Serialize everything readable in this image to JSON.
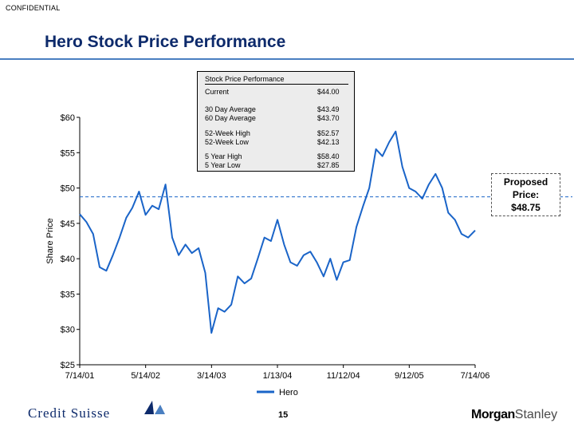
{
  "header": {
    "confidential": "CONFIDENTIAL",
    "title": "Hero Stock Price Performance"
  },
  "stats_box": {
    "title": "Stock Price Performance",
    "rows": [
      {
        "label": "Current",
        "value": "$44.00"
      },
      {
        "label": "30 Day Average",
        "value": "$43.49"
      },
      {
        "label": "60 Day Average",
        "value": "$43.70"
      },
      {
        "label": "52-Week High",
        "value": "$52.57"
      },
      {
        "label": "52-Week Low",
        "value": "$42.13"
      },
      {
        "label": "5 Year High",
        "value": "$58.40"
      },
      {
        "label": "5 Year Low",
        "value": "$27.85"
      }
    ]
  },
  "proposed": {
    "line1": "Proposed",
    "line2": "Price:",
    "line3": "$48.75"
  },
  "footer": {
    "left_logo": "Credit Suisse",
    "page_number": "15",
    "right_logo_part1": "Morgan",
    "right_logo_part2": "Stanley"
  },
  "colors": {
    "series": "#1a64c8",
    "title": "#0d2a6b",
    "rule": "#4a7fc1"
  },
  "chart_data": {
    "type": "line",
    "title": "",
    "xlabel": "",
    "ylabel": "Share Price",
    "ylim": [
      25,
      60
    ],
    "y_ticks": [
      25,
      30,
      35,
      40,
      45,
      50,
      55,
      60
    ],
    "y_tick_labels": [
      "$25",
      "$30",
      "$35",
      "$40",
      "$45",
      "$50",
      "$55",
      "$60"
    ],
    "x_tick_labels": [
      "7/14/01",
      "5/14/02",
      "3/14/03",
      "1/13/04",
      "11/12/04",
      "9/12/05",
      "7/14/06"
    ],
    "xlim": [
      "7/14/01",
      "7/14/06"
    ],
    "reference_line": {
      "value": 48.75,
      "style": "dashed"
    },
    "legend": "bottom-center",
    "grid": false,
    "series": [
      {
        "name": "Hero",
        "x": [
          "7/14/01",
          "8/14/01",
          "9/14/01",
          "10/14/01",
          "11/14/01",
          "12/14/01",
          "1/14/02",
          "2/14/02",
          "3/14/02",
          "4/14/02",
          "5/14/02",
          "6/14/02",
          "7/14/02",
          "8/14/02",
          "9/14/02",
          "10/14/02",
          "11/14/02",
          "12/14/02",
          "1/14/03",
          "2/14/03",
          "3/14/03",
          "4/14/03",
          "5/14/03",
          "6/14/03",
          "7/14/03",
          "8/14/03",
          "9/14/03",
          "10/14/03",
          "11/14/03",
          "12/14/03",
          "1/13/04",
          "2/13/04",
          "3/13/04",
          "4/13/04",
          "5/13/04",
          "6/13/04",
          "7/13/04",
          "8/13/04",
          "9/13/04",
          "10/13/04",
          "11/12/04",
          "12/12/04",
          "1/12/05",
          "2/12/05",
          "3/12/05",
          "4/12/05",
          "5/12/05",
          "6/12/05",
          "7/12/05",
          "8/12/05",
          "9/12/05",
          "10/12/05",
          "11/12/05",
          "12/12/05",
          "1/12/06",
          "2/12/06",
          "3/12/06",
          "4/12/06",
          "5/12/06",
          "6/12/06",
          "7/14/06"
        ],
        "values": [
          46.3,
          45.2,
          43.5,
          38.8,
          38.3,
          40.5,
          43.0,
          45.8,
          47.2,
          49.5,
          46.2,
          47.5,
          47.0,
          50.5,
          43.0,
          40.5,
          42.0,
          40.8,
          41.5,
          38.0,
          29.5,
          33.0,
          32.5,
          33.5,
          37.5,
          36.5,
          37.2,
          40.0,
          43.0,
          42.5,
          45.5,
          42.0,
          39.5,
          39.0,
          40.5,
          41.0,
          39.5,
          37.5,
          40.0,
          37.0,
          39.5,
          39.8,
          44.5,
          47.5,
          50.0,
          55.5,
          54.5,
          56.5,
          58.0,
          53.0,
          50.0,
          49.5,
          48.5,
          50.5,
          52.0,
          50.0,
          46.5,
          45.5,
          43.5,
          43.0,
          44.0
        ]
      }
    ]
  }
}
